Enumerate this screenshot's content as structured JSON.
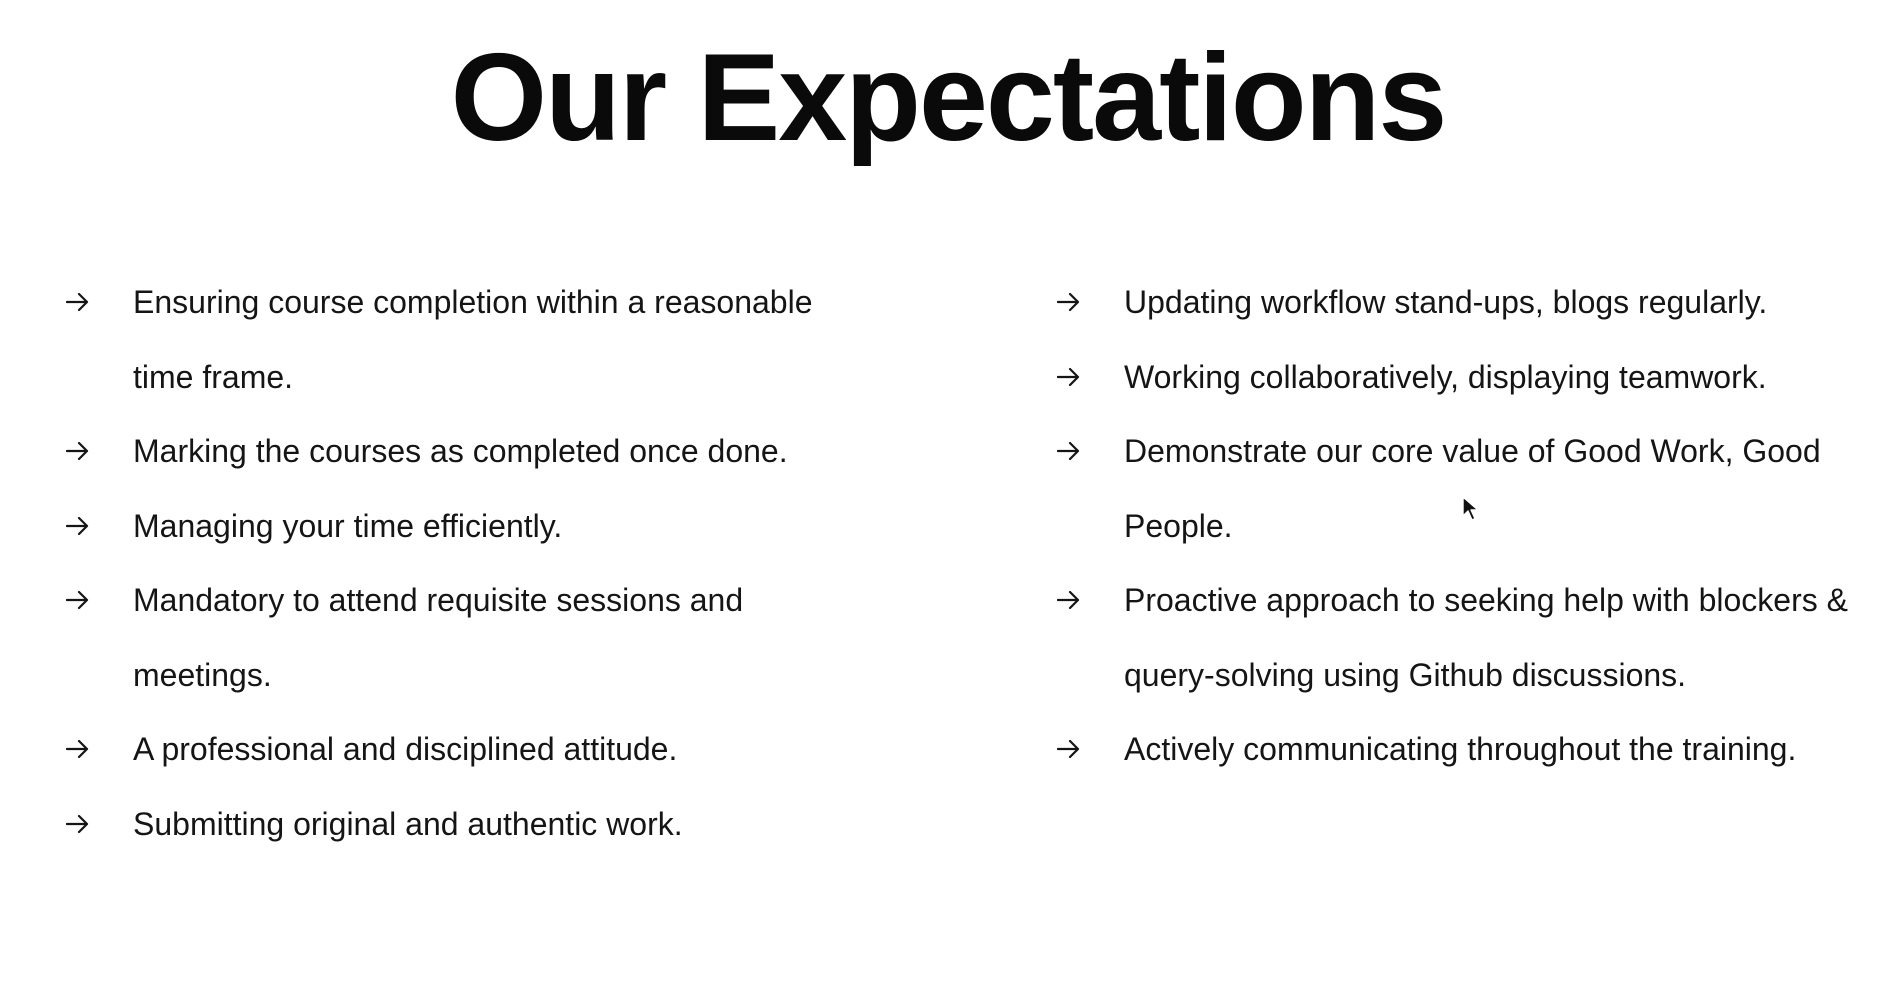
{
  "title": "Our Expectations",
  "left_items": [
    "Ensuring course completion within a reasonable time frame.",
    "Marking the courses as completed once done.",
    "Managing your time efficiently.",
    "Mandatory to attend requisite sessions and meetings.",
    "A professional and disciplined attitude.",
    "Submitting original and authentic work."
  ],
  "right_items": [
    "Updating workflow stand-ups, blogs regularly.",
    "Working collaboratively, displaying teamwork.",
    "Demonstrate our core value of Good Work, Good People.",
    "Proactive approach to seeking help with blockers & query-solving using Github discussions.",
    "Actively communicating throughout the training."
  ],
  "icons": {
    "bullet": "arrow-right-icon",
    "pointer": "mouse-cursor-icon"
  },
  "colors": {
    "background": "#ffffff",
    "text": "#151515",
    "title": "#0a0a0a"
  }
}
